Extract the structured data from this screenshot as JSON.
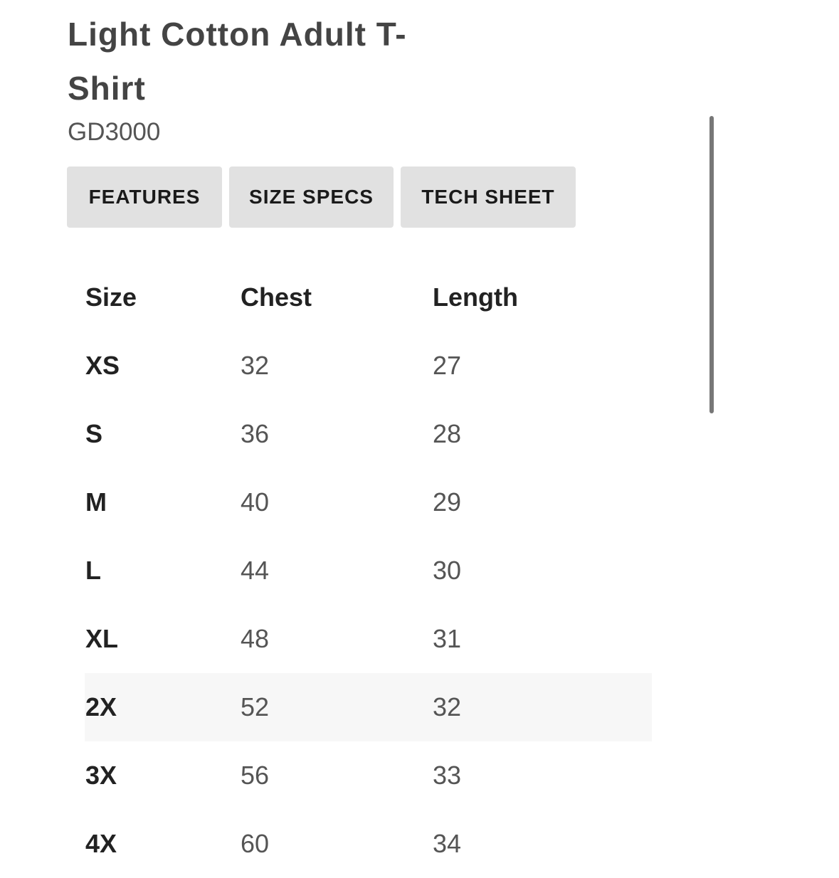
{
  "product": {
    "title": "Light Cotton Adult T-Shirt",
    "code": "GD3000"
  },
  "tabs": [
    {
      "label": "FEATURES"
    },
    {
      "label": "SIZE SPECS"
    },
    {
      "label": "TECH SHEET"
    }
  ],
  "table": {
    "headers": [
      "Size",
      "Chest",
      "Length"
    ],
    "rows": [
      [
        "XS",
        "32",
        "27"
      ],
      [
        "S",
        "36",
        "28"
      ],
      [
        "M",
        "40",
        "29"
      ],
      [
        "L",
        "44",
        "30"
      ],
      [
        "XL",
        "48",
        "31"
      ],
      [
        "2X",
        "52",
        "32"
      ],
      [
        "3X",
        "56",
        "33"
      ],
      [
        "4X",
        "60",
        "34"
      ]
    ],
    "highlighted_row": "2X"
  }
}
